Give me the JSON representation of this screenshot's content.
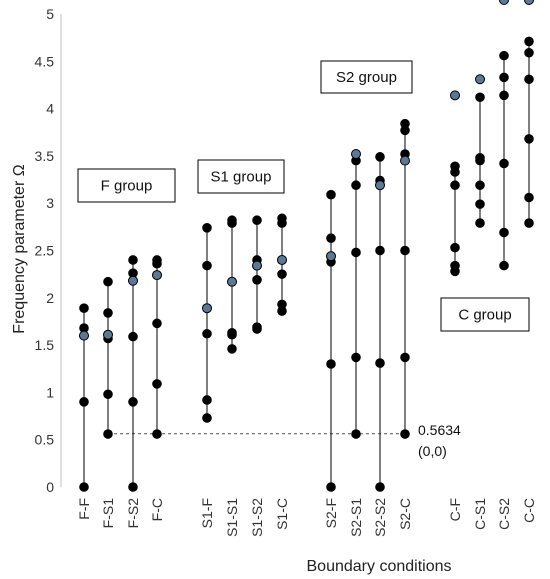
{
  "chart_data": {
    "type": "scatter",
    "title": "",
    "xlabel": "Boundary conditions",
    "ylabel": "Frequency parameter Ω",
    "ylim": [
      0,
      5
    ],
    "yticks": [
      "0",
      "0.5",
      "1",
      "1.5",
      "2",
      "2.5",
      "3",
      "3.5",
      "4",
      "4.5",
      "5"
    ],
    "grid": false,
    "categories": [
      "F-F",
      "F-S1",
      "F-S2",
      "F-C",
      "S1-F",
      "S1-S1",
      "S1-S2",
      "S1-C",
      "S2-F",
      "S2-S1",
      "S2-S2",
      "S2-C",
      "C-F",
      "C-S1",
      "C-S2",
      "C-C"
    ],
    "series": [
      {
        "values": [
          [
            0,
            0.9,
            1.6,
            1.68,
            1.89
          ],
          [
            0.56,
            0.98,
            1.57,
            1.61,
            1.84,
            2.17
          ],
          [
            0,
            0.9,
            1.59,
            2.18,
            2.26,
            2.4
          ],
          [
            0.56,
            1.09,
            1.73,
            2.24,
            2.36,
            2.4
          ],
          [
            0.73,
            0.92,
            1.62,
            1.89,
            2.34,
            2.74
          ],
          [
            1.46,
            1.61,
            1.63,
            2.17,
            2.79,
            2.82
          ],
          [
            1.67,
            1.69,
            2.19,
            2.34,
            2.4,
            2.82
          ],
          [
            1.86,
            1.93,
            2.25,
            2.4,
            2.79,
            2.84
          ],
          [
            0,
            1.3,
            2.38,
            2.44,
            2.63,
            3.09
          ],
          [
            0.56,
            1.37,
            2.48,
            3.19,
            3.45
          ],
          [
            0,
            1.31,
            2.5,
            3.24,
            3.49
          ],
          [
            0.56,
            1.37,
            2.5,
            3.52,
            3.77,
            3.84
          ],
          [
            2.28,
            2.34,
            2.53,
            3.19,
            3.33,
            3.39
          ],
          [
            2.79,
            2.99,
            3.19,
            3.45,
            3.48,
            4.12
          ],
          [
            2.34,
            2.69,
            3.42,
            4.14,
            4.33,
            4.56
          ],
          [
            2.79,
            3.06,
            3.68,
            4.31,
            4.59,
            4.71
          ]
        ],
        "highlighted": [
          1.6,
          1.61,
          2.18,
          2.24,
          1.89,
          2.17,
          2.34,
          2.4,
          2.44,
          3.52,
          3.19,
          3.45,
          4.14,
          4.31
        ],
        "highlight_color": "#5b7896",
        "marker_color": "#000000"
      }
    ],
    "groups": [
      "F group",
      "S1 group",
      "S2 group",
      "C group"
    ],
    "annotation": {
      "value": "0.5634",
      "point": "(0,0)",
      "reference_y": 0.5634,
      "from_category": "F-S1",
      "to_category": "S2-C"
    }
  }
}
